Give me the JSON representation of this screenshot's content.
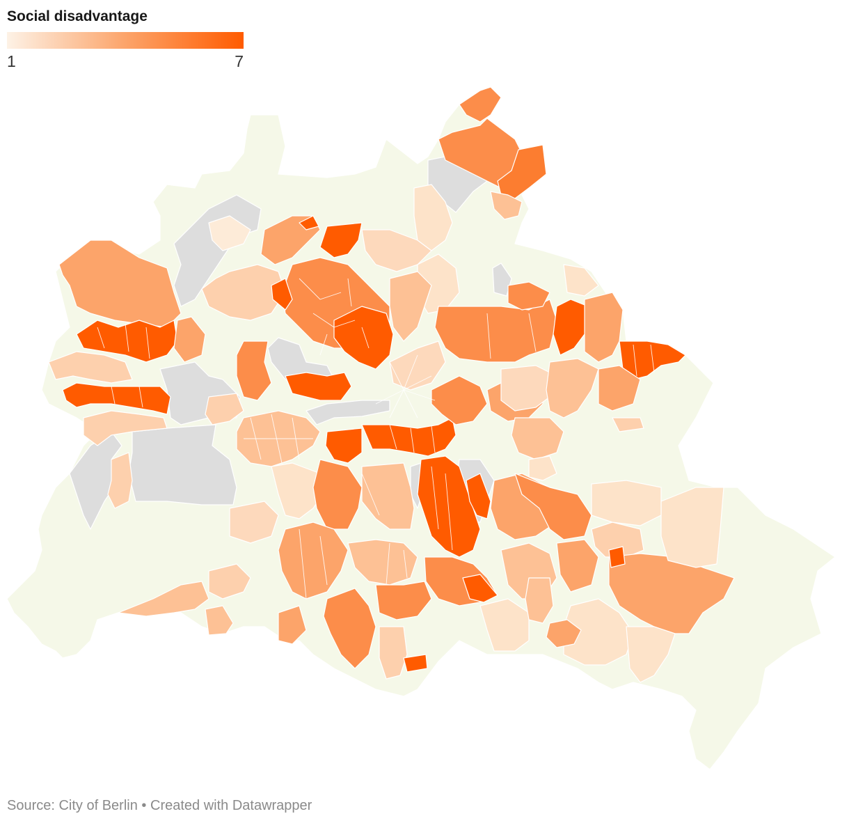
{
  "legend": {
    "title": "Social disadvantage",
    "min_label": "1",
    "max_label": "7",
    "scale_min": 1,
    "scale_max": 7,
    "colors": {
      "low": "#fdf2e6",
      "mid": "#fca46a",
      "high": "#ff5b00",
      "no_data": "#dddddd",
      "outside": "#f5f8e8",
      "border": "#ffffff"
    }
  },
  "footer": {
    "source": "Source: City of Berlin",
    "separator": "•",
    "credit": "Created with Datawrapper"
  }
}
